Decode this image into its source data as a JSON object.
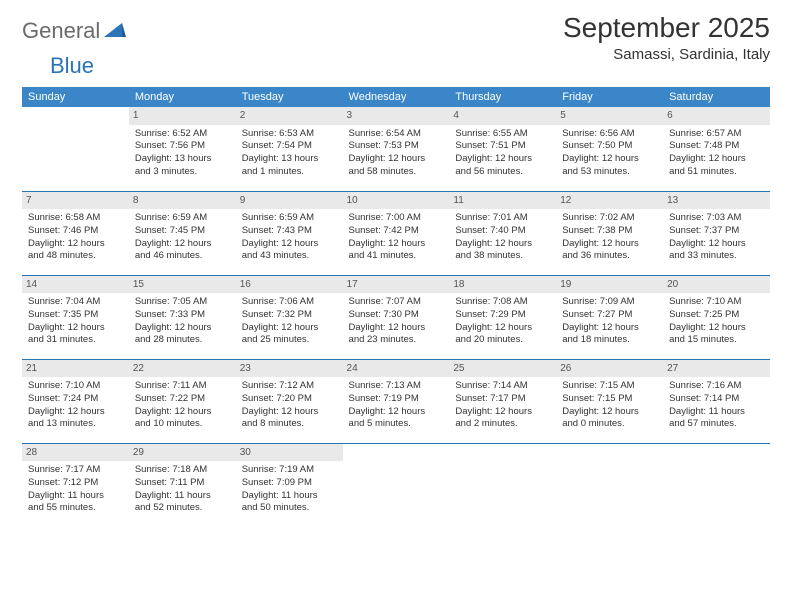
{
  "logo": {
    "text1": "General",
    "text2": "Blue"
  },
  "title": "September 2025",
  "location": "Samassi, Sardinia, Italy",
  "colors": {
    "header_bg": "#3a86c8",
    "header_text": "#ffffff",
    "daynum_bg": "#e9e9e9",
    "row_border": "#2a74b8",
    "logo_gray": "#6b6b6b",
    "logo_blue": "#2a74b8",
    "page_bg": "#ffffff"
  },
  "headers": [
    "Sunday",
    "Monday",
    "Tuesday",
    "Wednesday",
    "Thursday",
    "Friday",
    "Saturday"
  ],
  "rows": [
    [
      {
        "n": "",
        "l": [
          "",
          "",
          "",
          ""
        ]
      },
      {
        "n": "1",
        "l": [
          "Sunrise: 6:52 AM",
          "Sunset: 7:56 PM",
          "Daylight: 13 hours",
          "and 3 minutes."
        ]
      },
      {
        "n": "2",
        "l": [
          "Sunrise: 6:53 AM",
          "Sunset: 7:54 PM",
          "Daylight: 13 hours",
          "and 1 minutes."
        ]
      },
      {
        "n": "3",
        "l": [
          "Sunrise: 6:54 AM",
          "Sunset: 7:53 PM",
          "Daylight: 12 hours",
          "and 58 minutes."
        ]
      },
      {
        "n": "4",
        "l": [
          "Sunrise: 6:55 AM",
          "Sunset: 7:51 PM",
          "Daylight: 12 hours",
          "and 56 minutes."
        ]
      },
      {
        "n": "5",
        "l": [
          "Sunrise: 6:56 AM",
          "Sunset: 7:50 PM",
          "Daylight: 12 hours",
          "and 53 minutes."
        ]
      },
      {
        "n": "6",
        "l": [
          "Sunrise: 6:57 AM",
          "Sunset: 7:48 PM",
          "Daylight: 12 hours",
          "and 51 minutes."
        ]
      }
    ],
    [
      {
        "n": "7",
        "l": [
          "Sunrise: 6:58 AM",
          "Sunset: 7:46 PM",
          "Daylight: 12 hours",
          "and 48 minutes."
        ]
      },
      {
        "n": "8",
        "l": [
          "Sunrise: 6:59 AM",
          "Sunset: 7:45 PM",
          "Daylight: 12 hours",
          "and 46 minutes."
        ]
      },
      {
        "n": "9",
        "l": [
          "Sunrise: 6:59 AM",
          "Sunset: 7:43 PM",
          "Daylight: 12 hours",
          "and 43 minutes."
        ]
      },
      {
        "n": "10",
        "l": [
          "Sunrise: 7:00 AM",
          "Sunset: 7:42 PM",
          "Daylight: 12 hours",
          "and 41 minutes."
        ]
      },
      {
        "n": "11",
        "l": [
          "Sunrise: 7:01 AM",
          "Sunset: 7:40 PM",
          "Daylight: 12 hours",
          "and 38 minutes."
        ]
      },
      {
        "n": "12",
        "l": [
          "Sunrise: 7:02 AM",
          "Sunset: 7:38 PM",
          "Daylight: 12 hours",
          "and 36 minutes."
        ]
      },
      {
        "n": "13",
        "l": [
          "Sunrise: 7:03 AM",
          "Sunset: 7:37 PM",
          "Daylight: 12 hours",
          "and 33 minutes."
        ]
      }
    ],
    [
      {
        "n": "14",
        "l": [
          "Sunrise: 7:04 AM",
          "Sunset: 7:35 PM",
          "Daylight: 12 hours",
          "and 31 minutes."
        ]
      },
      {
        "n": "15",
        "l": [
          "Sunrise: 7:05 AM",
          "Sunset: 7:33 PM",
          "Daylight: 12 hours",
          "and 28 minutes."
        ]
      },
      {
        "n": "16",
        "l": [
          "Sunrise: 7:06 AM",
          "Sunset: 7:32 PM",
          "Daylight: 12 hours",
          "and 25 minutes."
        ]
      },
      {
        "n": "17",
        "l": [
          "Sunrise: 7:07 AM",
          "Sunset: 7:30 PM",
          "Daylight: 12 hours",
          "and 23 minutes."
        ]
      },
      {
        "n": "18",
        "l": [
          "Sunrise: 7:08 AM",
          "Sunset: 7:29 PM",
          "Daylight: 12 hours",
          "and 20 minutes."
        ]
      },
      {
        "n": "19",
        "l": [
          "Sunrise: 7:09 AM",
          "Sunset: 7:27 PM",
          "Daylight: 12 hours",
          "and 18 minutes."
        ]
      },
      {
        "n": "20",
        "l": [
          "Sunrise: 7:10 AM",
          "Sunset: 7:25 PM",
          "Daylight: 12 hours",
          "and 15 minutes."
        ]
      }
    ],
    [
      {
        "n": "21",
        "l": [
          "Sunrise: 7:10 AM",
          "Sunset: 7:24 PM",
          "Daylight: 12 hours",
          "and 13 minutes."
        ]
      },
      {
        "n": "22",
        "l": [
          "Sunrise: 7:11 AM",
          "Sunset: 7:22 PM",
          "Daylight: 12 hours",
          "and 10 minutes."
        ]
      },
      {
        "n": "23",
        "l": [
          "Sunrise: 7:12 AM",
          "Sunset: 7:20 PM",
          "Daylight: 12 hours",
          "and 8 minutes."
        ]
      },
      {
        "n": "24",
        "l": [
          "Sunrise: 7:13 AM",
          "Sunset: 7:19 PM",
          "Daylight: 12 hours",
          "and 5 minutes."
        ]
      },
      {
        "n": "25",
        "l": [
          "Sunrise: 7:14 AM",
          "Sunset: 7:17 PM",
          "Daylight: 12 hours",
          "and 2 minutes."
        ]
      },
      {
        "n": "26",
        "l": [
          "Sunrise: 7:15 AM",
          "Sunset: 7:15 PM",
          "Daylight: 12 hours",
          "and 0 minutes."
        ]
      },
      {
        "n": "27",
        "l": [
          "Sunrise: 7:16 AM",
          "Sunset: 7:14 PM",
          "Daylight: 11 hours",
          "and 57 minutes."
        ]
      }
    ],
    [
      {
        "n": "28",
        "l": [
          "Sunrise: 7:17 AM",
          "Sunset: 7:12 PM",
          "Daylight: 11 hours",
          "and 55 minutes."
        ]
      },
      {
        "n": "29",
        "l": [
          "Sunrise: 7:18 AM",
          "Sunset: 7:11 PM",
          "Daylight: 11 hours",
          "and 52 minutes."
        ]
      },
      {
        "n": "30",
        "l": [
          "Sunrise: 7:19 AM",
          "Sunset: 7:09 PM",
          "Daylight: 11 hours",
          "and 50 minutes."
        ]
      },
      {
        "n": "",
        "l": [
          "",
          "",
          "",
          ""
        ]
      },
      {
        "n": "",
        "l": [
          "",
          "",
          "",
          ""
        ]
      },
      {
        "n": "",
        "l": [
          "",
          "",
          "",
          ""
        ]
      },
      {
        "n": "",
        "l": [
          "",
          "",
          "",
          ""
        ]
      }
    ]
  ]
}
